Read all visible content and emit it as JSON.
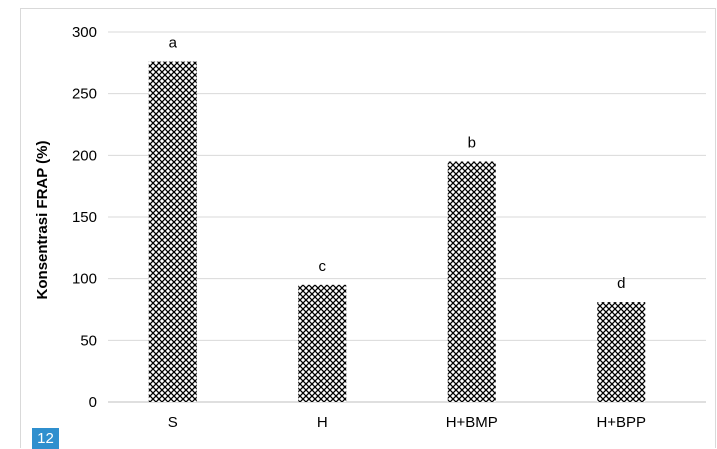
{
  "chart_data": {
    "type": "bar",
    "categories": [
      "S",
      "H",
      "H+BMP",
      "H+BPP"
    ],
    "values": [
      276,
      95,
      195,
      81
    ],
    "data_labels": [
      "a",
      "c",
      "b",
      "d"
    ],
    "ylabel": "Konsentrasi FRAP (%)",
    "xlabel": "",
    "title": "",
    "ylim": [
      0,
      300
    ],
    "yticks": [
      0,
      50,
      100,
      150,
      200,
      250,
      300
    ],
    "grid": true,
    "legend": "none",
    "bar_pattern": "crosshatch",
    "colors": {
      "bar": "#000000",
      "grid": "#d9d9d9",
      "axis": "#bfbfbf"
    }
  },
  "page_badge": "12",
  "colors": {
    "page_badge_bg": "#2f8fce"
  }
}
